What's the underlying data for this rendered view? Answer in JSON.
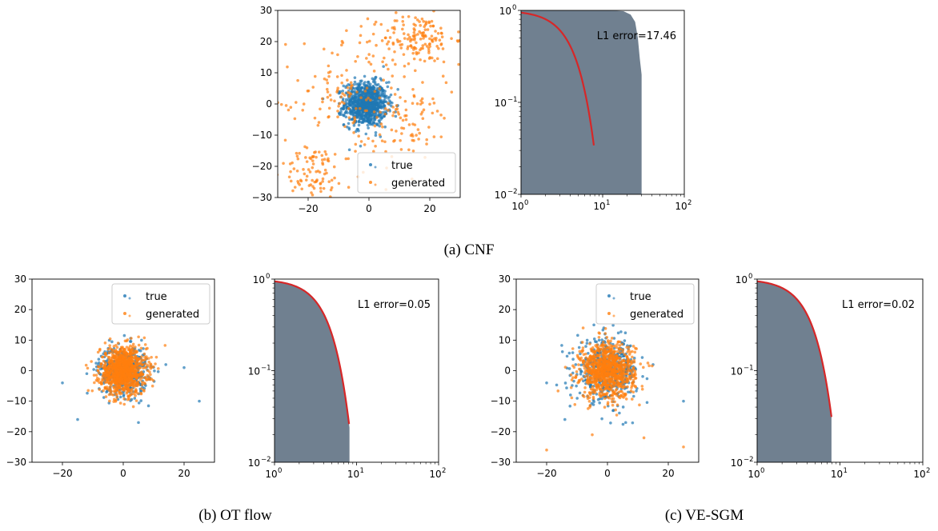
{
  "captions": {
    "cnf": "(a) CNF",
    "ot": "(b) OT flow",
    "ve": "(c) VE-SGM"
  },
  "colors": {
    "true": "#1f77b4",
    "generated": "#ff7f0e",
    "histogram": "#708090",
    "reference_curve": "#d62728"
  },
  "chart_data": [
    {
      "id": "cnf-scatter",
      "type": "scatter",
      "xlim": [
        -30,
        30
      ],
      "ylim": [
        -30,
        30
      ],
      "xticks": [
        -20,
        0,
        20
      ],
      "yticks": [
        -30,
        -20,
        -10,
        0,
        10,
        20,
        30
      ],
      "legend": "lower-right",
      "series": [
        {
          "name": "true",
          "color": "#1f77b4",
          "center": [
            -1,
            0
          ],
          "spread_sd": 3.5,
          "n": 900,
          "note_points": [
            [
              -3,
              6
            ],
            [
              5,
              -4
            ],
            [
              -5,
              -3
            ],
            [
              2,
              7
            ]
          ]
        },
        {
          "name": "generated",
          "color": "#ff7f0e",
          "clusters": [
            {
              "center": [
                16,
                21
              ],
              "spread_sd": [
                6,
                4
              ],
              "n": 140
            },
            {
              "center": [
                -18,
                -22
              ],
              "spread_sd": [
                5,
                4
              ],
              "n": 80
            },
            {
              "center": [
                14,
                -5
              ],
              "spread_sd": [
                6,
                5
              ],
              "n": 40
            },
            {
              "center": [
                0,
                0
              ],
              "spread_sd": [
                15,
                15
              ],
              "n": 180
            },
            {
              "center": [
                -10,
                5
              ],
              "spread_sd": [
                6,
                6
              ],
              "n": 40
            }
          ]
        }
      ]
    },
    {
      "id": "cnf-tail",
      "type": "area",
      "scale": "log-log",
      "xlim": [
        1,
        100
      ],
      "ylim": [
        0.01,
        1
      ],
      "xtick_labels": [
        "10^0",
        "10^1",
        "10^2"
      ],
      "ytick_labels": [
        "10^-2",
        "10^-1",
        "10^0"
      ],
      "histogram": {
        "color": "#708090",
        "x_end": 30,
        "points": [
          [
            1,
            1
          ],
          [
            12,
            1
          ],
          [
            18,
            0.98
          ],
          [
            22,
            0.9
          ],
          [
            25,
            0.75
          ],
          [
            27,
            0.5
          ],
          [
            28.5,
            0.3
          ],
          [
            30,
            0.2
          ]
        ]
      },
      "reference_curve": {
        "color": "#d62728",
        "formula": "exp(-x^2/18)",
        "x_end": 7.8
      },
      "annotation": "L1 error=17.46"
    },
    {
      "id": "ot-scatter",
      "type": "scatter",
      "xlim": [
        -30,
        30
      ],
      "ylim": [
        -30,
        30
      ],
      "xticks": [
        -20,
        0,
        20
      ],
      "yticks": [
        -30,
        -20,
        -10,
        0,
        10,
        20,
        30
      ],
      "legend": "upper-right",
      "series": [
        {
          "name": "true",
          "color": "#1f77b4",
          "center": [
            0,
            0
          ],
          "spread_sd": 4,
          "n": 500,
          "outliers": [
            [
              25,
              -10
            ],
            [
              20,
              1
            ],
            [
              -20,
              -4
            ],
            [
              -15,
              -16
            ],
            [
              5,
              -17
            ],
            [
              14,
              2
            ]
          ]
        },
        {
          "name": "generated",
          "color": "#ff7f0e",
          "center": [
            0,
            0
          ],
          "spread_sd": 3.8,
          "n": 1000
        }
      ]
    },
    {
      "id": "ot-tail",
      "type": "area",
      "scale": "log-log",
      "xlim": [
        1,
        100
      ],
      "ylim": [
        0.01,
        1
      ],
      "xtick_labels": [
        "10^0",
        "10^1",
        "10^2"
      ],
      "ytick_labels": [
        "10^-2",
        "10^-1",
        "10^0"
      ],
      "histogram": {
        "color": "#708090",
        "formula": "exp(-x^2/18)",
        "x_end": 8.2
      },
      "reference_curve": {
        "color": "#d62728",
        "formula": "exp(-x^2/18)",
        "x_end": 8.1
      },
      "annotation": "L1 error=0.05"
    },
    {
      "id": "ve-scatter",
      "type": "scatter",
      "xlim": [
        -30,
        30
      ],
      "ylim": [
        -30,
        30
      ],
      "xticks": [
        -20,
        0,
        20
      ],
      "yticks": [
        -30,
        -20,
        -10,
        0,
        10,
        20,
        30
      ],
      "legend": "upper-right",
      "series": [
        {
          "name": "true",
          "color": "#1f77b4",
          "center": [
            0,
            0
          ],
          "spread_sd": 5,
          "n": 500,
          "outliers": [
            [
              25,
              -10
            ],
            [
              -20,
              -4
            ],
            [
              -14,
              -16
            ],
            [
              6,
              -17
            ],
            [
              15,
              2
            ]
          ]
        },
        {
          "name": "generated",
          "color": "#ff7f0e",
          "center": [
            0,
            0
          ],
          "spread_sd": 4.5,
          "n": 900,
          "outliers": [
            [
              -20,
              -26
            ],
            [
              25,
              -25
            ],
            [
              -8,
              14
            ],
            [
              12,
              -22
            ],
            [
              -5,
              -21
            ]
          ]
        }
      ]
    },
    {
      "id": "ve-tail",
      "type": "area",
      "scale": "log-log",
      "xlim": [
        1,
        100
      ],
      "ylim": [
        0.01,
        1
      ],
      "xtick_labels": [
        "10^0",
        "10^1",
        "10^2"
      ],
      "ytick_labels": [
        "10^-2",
        "10^-1",
        "10^0"
      ],
      "histogram": {
        "color": "#708090",
        "formula": "exp(-x^2/18)",
        "x_end": 7.9
      },
      "reference_curve": {
        "color": "#d62728",
        "formula": "exp(-x^2/18)",
        "x_end": 7.9
      },
      "annotation": "L1 error=0.02"
    }
  ]
}
